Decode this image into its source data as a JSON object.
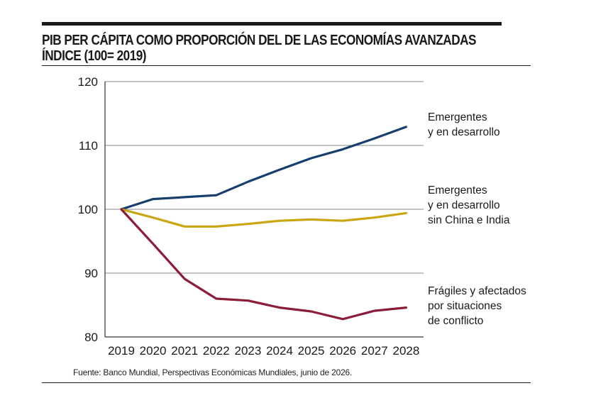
{
  "title": {
    "line1": "PIB PER CÁPITA COMO PROPORCIÓN DEL DE LAS ECONOMÍAS AVANZADAS",
    "line2": "ÍNDICE (100= 2019)"
  },
  "source": "Fuente: Banco Mundial, Perspectivas Económicas Mundiales, junio de 2026.",
  "colors": {
    "emergentes": "#173f6e",
    "sin_china_india": "#c9a612",
    "fragiles": "#8c1c3a",
    "grid": "#888888",
    "axis": "#333333"
  },
  "chart_data": {
    "type": "line",
    "title": "PIB PER CÁPITA COMO PROPORCIÓN DEL DE LAS ECONOMÍAS AVANZADAS ÍNDICE (100= 2019)",
    "x": [
      "2019",
      "2020",
      "2021",
      "2022",
      "2023",
      "2024",
      "2025",
      "2026",
      "2027",
      "2028"
    ],
    "ylim": [
      80,
      120
    ],
    "yticks": [
      80,
      90,
      100,
      110,
      120
    ],
    "grid": "horizontal",
    "series": [
      {
        "name_lines": [
          "Emergentes",
          "y en desarrollo"
        ],
        "color": "#173f6e",
        "values": [
          100,
          101.6,
          101.9,
          102.2,
          104.3,
          106.2,
          108.0,
          109.4,
          111.1,
          112.9
        ]
      },
      {
        "name_lines": [
          "Emergentes",
          "y en desarrollo",
          "sin China e India"
        ],
        "color": "#c9a612",
        "values": [
          100,
          98.7,
          97.3,
          97.3,
          97.7,
          98.2,
          98.4,
          98.2,
          98.7,
          99.4
        ]
      },
      {
        "name_lines": [
          "Frágiles y afectados",
          "por situaciones",
          "de conflicto"
        ],
        "color": "#8c1c3a",
        "values": [
          100,
          94.6,
          89.1,
          86.0,
          85.7,
          84.6,
          84.0,
          82.8,
          84.1,
          84.6
        ]
      }
    ]
  }
}
